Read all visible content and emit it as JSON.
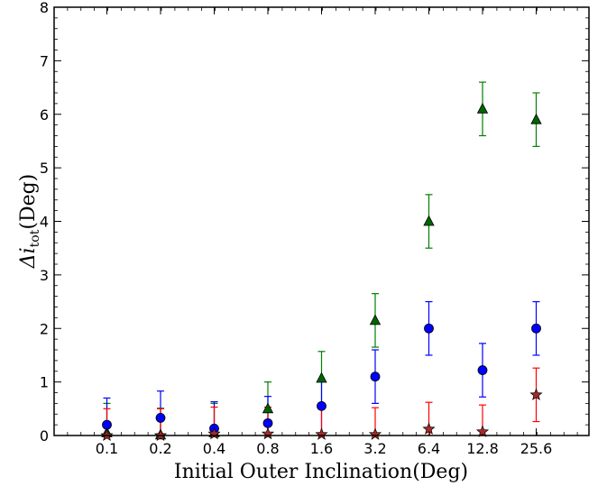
{
  "chart_data": {
    "type": "scatter",
    "title": "",
    "xlabel": "Initial Outer Inclination(Deg)",
    "ylabel_main": "Δi",
    "ylabel_sub": "tot",
    "ylabel_unit": "(Deg)",
    "categories": [
      "0.1",
      "0.2",
      "0.4",
      "0.8",
      "1.6",
      "3.2",
      "6.4",
      "12.8",
      "25.6"
    ],
    "ylim": [
      0,
      8
    ],
    "yticks": [
      "0",
      "1",
      "2",
      "3",
      "4",
      "5",
      "6",
      "7",
      "8"
    ],
    "grid": false,
    "series": [
      {
        "marker": "triangle",
        "color": "#008000",
        "fill": "#006400",
        "values": [
          0.05,
          0.01,
          0.05,
          0.5,
          1.07,
          2.15,
          4.0,
          6.1,
          5.9
        ],
        "err": [
          0.55,
          0.5,
          0.55,
          0.5,
          0.5,
          0.5,
          0.5,
          0.5,
          0.5
        ]
      },
      {
        "marker": "circle",
        "color": "#0000ff",
        "fill": "#0000ff",
        "values": [
          0.2,
          0.33,
          0.13,
          0.23,
          0.55,
          1.1,
          2.0,
          1.22,
          2.0
        ],
        "err": [
          0.5,
          0.5,
          0.5,
          0.5,
          0.5,
          0.5,
          0.5,
          0.5,
          0.5
        ]
      },
      {
        "marker": "star",
        "color": "#ff0000",
        "fill": "#a52a2a",
        "values": [
          0.0,
          0.0,
          0.03,
          0.03,
          0.02,
          0.02,
          0.12,
          0.07,
          0.76
        ],
        "err": [
          0.5,
          0.5,
          0.5,
          0.5,
          0.5,
          0.5,
          0.5,
          0.5,
          0.5
        ]
      }
    ]
  }
}
